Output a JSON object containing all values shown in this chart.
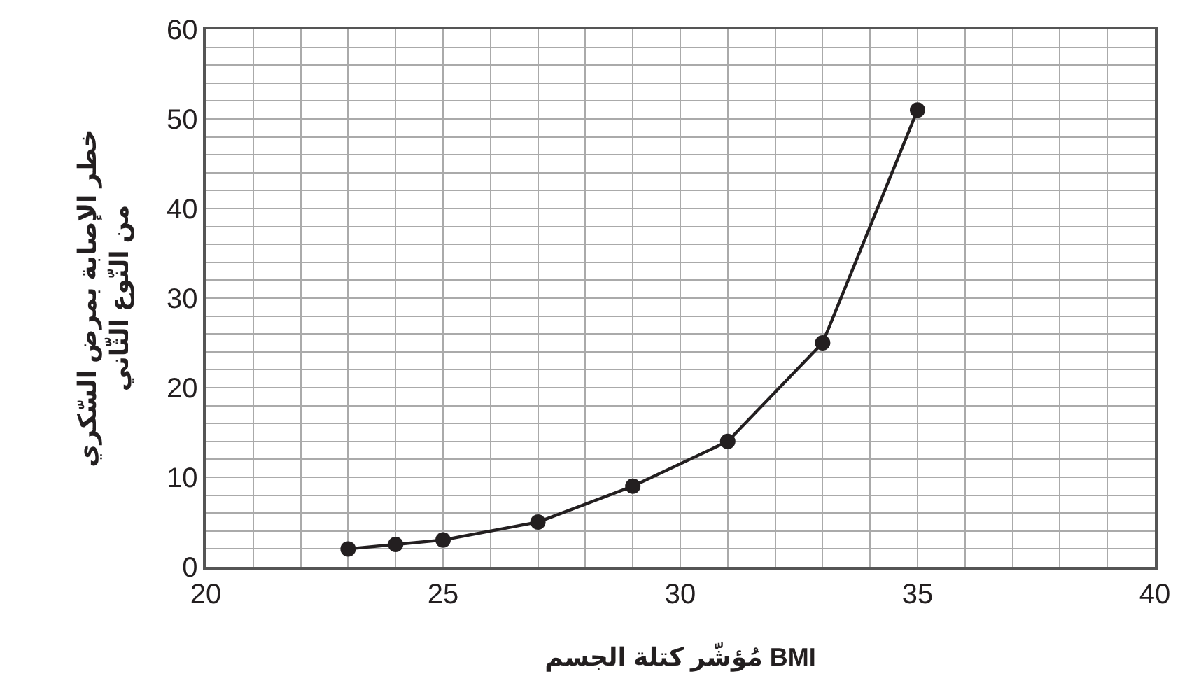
{
  "chart_data": {
    "type": "line",
    "xlabel": "مُؤشّر كتلة الجسم BMI",
    "ylabel": "خطر الإصابة بمرض السّكري\nمن النّوع الثّاني",
    "x": [
      23,
      24,
      25,
      27,
      29,
      31,
      33,
      35
    ],
    "series": [
      {
        "color": "#231f20",
        "values": [
          2,
          2.5,
          3,
          5,
          9,
          14,
          25,
          51
        ]
      }
    ],
    "xlim": [
      20,
      40
    ],
    "xticks": [
      20,
      {
        "value": 21,
        "label": null
      },
      {
        "value": 22,
        "label": null
      },
      {
        "value": 23,
        "label": null
      },
      {
        "value": 24,
        "label": null
      },
      25,
      {
        "value": 26,
        "label": null
      },
      {
        "value": 27,
        "label": null
      },
      {
        "value": 28,
        "label": null
      },
      {
        "value": 29,
        "label": null
      },
      30,
      {
        "value": 31,
        "label": null
      },
      {
        "value": 32,
        "label": null
      },
      {
        "value": 33,
        "label": null
      },
      {
        "value": 34,
        "label": null
      },
      35,
      {
        "value": 36,
        "label": null
      },
      {
        "value": 37,
        "label": null
      },
      {
        "value": 38,
        "label": null
      },
      {
        "value": 39,
        "label": null
      },
      40
    ],
    "ylim": [
      0,
      60
    ],
    "yticks": [
      0,
      {
        "value": 2,
        "label": null
      },
      {
        "value": 4,
        "label": null
      },
      {
        "value": 6,
        "label": null
      },
      {
        "value": 8,
        "label": null
      },
      10,
      {
        "value": 12,
        "label": null
      },
      {
        "value": 14,
        "label": null
      },
      {
        "value": 16,
        "label": null
      },
      {
        "value": 18,
        "label": null
      },
      20,
      {
        "value": 22,
        "label": null
      },
      {
        "value": 24,
        "label": null
      },
      {
        "value": 26,
        "label": null
      },
      {
        "value": 28,
        "label": null
      },
      30,
      {
        "value": 32,
        "label": null
      },
      {
        "value": 34,
        "label": null
      },
      {
        "value": 36,
        "label": null
      },
      {
        "value": 38,
        "label": null
      },
      40,
      {
        "value": 42,
        "label": null
      },
      {
        "value": 44,
        "label": null
      },
      {
        "value": 46,
        "label": null
      },
      {
        "value": 48,
        "label": null
      },
      50,
      {
        "value": 52,
        "label": null
      },
      {
        "value": 54,
        "label": null
      },
      {
        "value": 56,
        "label": null
      },
      {
        "value": 58,
        "label": null
      },
      60
    ],
    "grid": true,
    "marker": "circle",
    "line_style": "solid"
  }
}
